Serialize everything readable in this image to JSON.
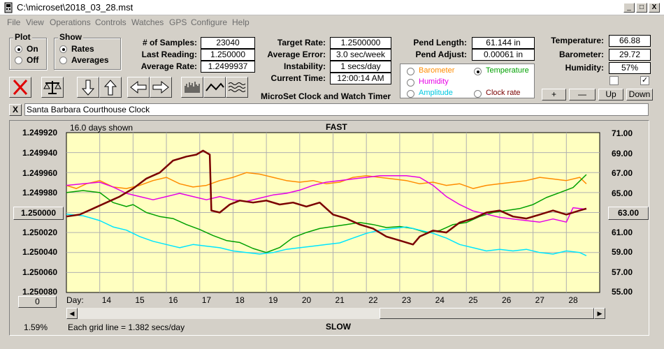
{
  "window": {
    "title": "C:\\microset\\2018_03_28.mst",
    "min": "_",
    "max": "□",
    "close": "X"
  },
  "menu": [
    "File",
    "View",
    "Operations",
    "Controls",
    "Watches",
    "GPS",
    "Configure",
    "Help"
  ],
  "plot_group": {
    "title": "Plot",
    "on": "On",
    "off": "Off",
    "selected": "On"
  },
  "show_group": {
    "title": "Show",
    "rates": "Rates",
    "averages": "Averages",
    "selected": "Rates"
  },
  "stats": {
    "samples_label": "# of Samples:",
    "samples": "23040",
    "last_label": "Last Reading:",
    "last": "1.250000",
    "avg_label": "Average Rate:",
    "avg": "1.2499937",
    "target_label": "Target Rate:",
    "target": "1.2500000",
    "error_label": "Average Error:",
    "error": "3.0 sec/week",
    "instab_label": "Instability:",
    "instab": "1 secs/day",
    "time_label": "Current Time:",
    "time": "12:00:14 AM",
    "pend_len_label": "Pend Length:",
    "pend_len": "61.144 in",
    "pend_adj_label": "Pend Adjust:",
    "pend_adj": "0.00061 in",
    "temp_label": "Temperature:",
    "temp": "66.88",
    "baro_label": "Barometer:",
    "baro": "29.72",
    "hum_label": "Humidity:",
    "hum": "57%"
  },
  "subtitle": "MicroSet Clock and Watch Timer",
  "legend": {
    "barometer": "Barometer",
    "temperature": "Temperature",
    "humidity": "Humidity",
    "amplitude": "Amplitude",
    "clock_rate": "Clock rate",
    "selected": "Temperature"
  },
  "right_buttons": {
    "plus": "+",
    "minus": "—",
    "up": "Up",
    "down": "Down"
  },
  "checks": {
    "first": "",
    "second": "✓"
  },
  "clock_name": "Santa Barbara Courthouse Clock",
  "close_x": "X",
  "chart": {
    "days_shown": "16.0 days shown",
    "fast": "FAST",
    "slow": "SLOW",
    "center_left": "1.250000",
    "center_right": "63.00",
    "bottom_left_btn": "0",
    "day_label": "Day:",
    "grid_note": "Each grid line = 1.382 secs/day",
    "percent": "1.59%"
  },
  "chart_data": {
    "type": "line",
    "x_ticks": [
      "14",
      "15",
      "16",
      "17",
      "18",
      "19",
      "20",
      "21",
      "22",
      "23",
      "24",
      "25",
      "26",
      "27",
      "28"
    ],
    "y_left_ticks": [
      "1.249920",
      "1.249940",
      "1.249960",
      "1.249980",
      "1.250000",
      "1.250020",
      "1.250040",
      "1.250060",
      "1.250080"
    ],
    "y_right_ticks": [
      "71.00",
      "69.00",
      "67.00",
      "65.00",
      "63.00",
      "61.00",
      "59.00",
      "57.00",
      "55.00"
    ],
    "x_range": [
      13,
      29
    ],
    "ylim_left": [
      1.25008,
      1.24992
    ],
    "ylim_right": [
      55,
      71
    ],
    "series": [
      {
        "name": "Barometer",
        "color": "#ff8c00",
        "axis": "pct",
        "values": [
          [
            13.0,
            0.33
          ],
          [
            13.3,
            0.35
          ],
          [
            13.6,
            0.32
          ],
          [
            14.0,
            0.3
          ],
          [
            14.4,
            0.34
          ],
          [
            14.8,
            0.35
          ],
          [
            15.2,
            0.33
          ],
          [
            15.6,
            0.3
          ],
          [
            16.0,
            0.28
          ],
          [
            16.4,
            0.32
          ],
          [
            16.8,
            0.34
          ],
          [
            17.2,
            0.33
          ],
          [
            17.6,
            0.3
          ],
          [
            18.0,
            0.28
          ],
          [
            18.4,
            0.25
          ],
          [
            18.8,
            0.26
          ],
          [
            19.2,
            0.28
          ],
          [
            19.6,
            0.3
          ],
          [
            20.0,
            0.31
          ],
          [
            20.4,
            0.3
          ],
          [
            20.8,
            0.32
          ],
          [
            21.2,
            0.31
          ],
          [
            21.6,
            0.28
          ],
          [
            22.0,
            0.27
          ],
          [
            22.4,
            0.28
          ],
          [
            22.8,
            0.29
          ],
          [
            23.2,
            0.3
          ],
          [
            23.6,
            0.32
          ],
          [
            24.0,
            0.31
          ],
          [
            24.4,
            0.33
          ],
          [
            24.8,
            0.32
          ],
          [
            25.2,
            0.35
          ],
          [
            25.6,
            0.33
          ],
          [
            26.0,
            0.32
          ],
          [
            26.4,
            0.31
          ],
          [
            26.8,
            0.3
          ],
          [
            27.2,
            0.28
          ],
          [
            27.6,
            0.29
          ],
          [
            28.0,
            0.3
          ],
          [
            28.4,
            0.28
          ],
          [
            28.6,
            0.32
          ]
        ]
      },
      {
        "name": "Temperature",
        "color": "#00a000",
        "axis": "right",
        "values": [
          [
            13.0,
            65.0
          ],
          [
            13.5,
            65.2
          ],
          [
            14.0,
            65.0
          ],
          [
            14.4,
            64.0
          ],
          [
            14.8,
            63.6
          ],
          [
            15.0,
            63.8
          ],
          [
            15.4,
            63.0
          ],
          [
            15.8,
            62.6
          ],
          [
            16.2,
            62.4
          ],
          [
            16.6,
            61.8
          ],
          [
            17.0,
            61.3
          ],
          [
            17.4,
            60.7
          ],
          [
            17.8,
            60.2
          ],
          [
            18.2,
            60.0
          ],
          [
            18.6,
            59.4
          ],
          [
            19.0,
            59.0
          ],
          [
            19.4,
            59.5
          ],
          [
            19.8,
            60.5
          ],
          [
            20.2,
            61.0
          ],
          [
            20.6,
            61.4
          ],
          [
            21.0,
            61.6
          ],
          [
            21.4,
            61.8
          ],
          [
            21.8,
            62.0
          ],
          [
            22.2,
            61.8
          ],
          [
            22.6,
            61.5
          ],
          [
            23.0,
            61.6
          ],
          [
            23.4,
            61.4
          ],
          [
            23.8,
            61.0
          ],
          [
            24.2,
            61.2
          ],
          [
            24.6,
            61.8
          ],
          [
            25.0,
            62.0
          ],
          [
            25.4,
            62.6
          ],
          [
            25.8,
            63.0
          ],
          [
            26.2,
            63.2
          ],
          [
            26.6,
            63.4
          ],
          [
            27.0,
            63.8
          ],
          [
            27.4,
            64.5
          ],
          [
            27.8,
            65.0
          ],
          [
            28.2,
            65.5
          ],
          [
            28.6,
            66.8
          ]
        ]
      },
      {
        "name": "Humidity",
        "color": "#e600e6",
        "axis": "pct",
        "values": [
          [
            13.0,
            0.33
          ],
          [
            13.5,
            0.32
          ],
          [
            14.0,
            0.31
          ],
          [
            14.4,
            0.34
          ],
          [
            14.8,
            0.38
          ],
          [
            15.2,
            0.4
          ],
          [
            15.6,
            0.42
          ],
          [
            16.0,
            0.4
          ],
          [
            16.4,
            0.38
          ],
          [
            16.8,
            0.4
          ],
          [
            17.2,
            0.42
          ],
          [
            17.6,
            0.4
          ],
          [
            18.0,
            0.42
          ],
          [
            18.4,
            0.43
          ],
          [
            18.8,
            0.41
          ],
          [
            19.2,
            0.39
          ],
          [
            19.6,
            0.38
          ],
          [
            20.0,
            0.36
          ],
          [
            20.4,
            0.33
          ],
          [
            20.8,
            0.31
          ],
          [
            21.2,
            0.3
          ],
          [
            21.6,
            0.29
          ],
          [
            22.0,
            0.28
          ],
          [
            22.4,
            0.27
          ],
          [
            22.8,
            0.27
          ],
          [
            23.2,
            0.27
          ],
          [
            23.6,
            0.28
          ],
          [
            24.0,
            0.33
          ],
          [
            24.4,
            0.4
          ],
          [
            24.8,
            0.45
          ],
          [
            25.2,
            0.49
          ],
          [
            25.6,
            0.51
          ],
          [
            26.0,
            0.53
          ],
          [
            26.4,
            0.54
          ],
          [
            26.8,
            0.55
          ],
          [
            27.2,
            0.56
          ],
          [
            27.6,
            0.54
          ],
          [
            28.0,
            0.56
          ],
          [
            28.2,
            0.47
          ],
          [
            28.6,
            0.48
          ]
        ]
      },
      {
        "name": "Amplitude",
        "color": "#00e5ff",
        "axis": "pct",
        "values": [
          [
            13.0,
            0.51
          ],
          [
            13.5,
            0.52
          ],
          [
            14.0,
            0.55
          ],
          [
            14.4,
            0.59
          ],
          [
            14.8,
            0.61
          ],
          [
            15.2,
            0.65
          ],
          [
            15.6,
            0.68
          ],
          [
            16.0,
            0.7
          ],
          [
            16.4,
            0.72
          ],
          [
            16.8,
            0.7
          ],
          [
            17.2,
            0.71
          ],
          [
            17.6,
            0.72
          ],
          [
            18.0,
            0.74
          ],
          [
            18.4,
            0.75
          ],
          [
            18.8,
            0.76
          ],
          [
            19.2,
            0.75
          ],
          [
            19.6,
            0.73
          ],
          [
            20.0,
            0.72
          ],
          [
            20.4,
            0.71
          ],
          [
            20.8,
            0.7
          ],
          [
            21.2,
            0.69
          ],
          [
            21.6,
            0.66
          ],
          [
            22.0,
            0.63
          ],
          [
            22.4,
            0.61
          ],
          [
            22.8,
            0.6
          ],
          [
            23.2,
            0.59
          ],
          [
            23.6,
            0.61
          ],
          [
            24.0,
            0.63
          ],
          [
            24.4,
            0.66
          ],
          [
            24.8,
            0.7
          ],
          [
            25.2,
            0.72
          ],
          [
            25.6,
            0.74
          ],
          [
            26.0,
            0.73
          ],
          [
            26.4,
            0.74
          ],
          [
            26.8,
            0.73
          ],
          [
            27.2,
            0.75
          ],
          [
            27.6,
            0.76
          ],
          [
            28.0,
            0.74
          ],
          [
            28.4,
            0.75
          ],
          [
            28.6,
            0.77
          ]
        ]
      },
      {
        "name": "Clock rate",
        "color": "#7a0000",
        "axis": "left",
        "values": [
          [
            13.0,
            1.250004
          ],
          [
            13.4,
            1.250002
          ],
          [
            13.8,
            1.249996
          ],
          [
            14.2,
            1.24999
          ],
          [
            14.6,
            1.249984
          ],
          [
            15.0,
            1.249976
          ],
          [
            15.4,
            1.249966
          ],
          [
            15.8,
            1.24996
          ],
          [
            16.2,
            1.249948
          ],
          [
            16.6,
            1.249944
          ],
          [
            16.9,
            1.249942
          ],
          [
            17.1,
            1.249938
          ],
          [
            17.3,
            1.249942
          ],
          [
            17.35,
            1.249998
          ],
          [
            17.6,
            1.25
          ],
          [
            17.9,
            1.249992
          ],
          [
            18.2,
            1.249988
          ],
          [
            18.6,
            1.24999
          ],
          [
            19.0,
            1.249988
          ],
          [
            19.4,
            1.249992
          ],
          [
            19.8,
            1.24999
          ],
          [
            20.2,
            1.249994
          ],
          [
            20.6,
            1.24999
          ],
          [
            21.0,
            1.250002
          ],
          [
            21.4,
            1.250006
          ],
          [
            21.8,
            1.250012
          ],
          [
            22.2,
            1.250016
          ],
          [
            22.6,
            1.250024
          ],
          [
            23.0,
            1.250028
          ],
          [
            23.4,
            1.250032
          ],
          [
            23.6,
            1.250024
          ],
          [
            24.0,
            1.250018
          ],
          [
            24.4,
            1.25002
          ],
          [
            24.8,
            1.25001
          ],
          [
            25.2,
            1.250006
          ],
          [
            25.6,
            1.25
          ],
          [
            26.0,
            1.249998
          ],
          [
            26.4,
            1.250004
          ],
          [
            26.8,
            1.250006
          ],
          [
            27.2,
            1.250002
          ],
          [
            27.6,
            1.249998
          ],
          [
            28.0,
            1.250002
          ],
          [
            28.4,
            1.249998
          ],
          [
            28.6,
            1.249996
          ]
        ]
      }
    ]
  }
}
